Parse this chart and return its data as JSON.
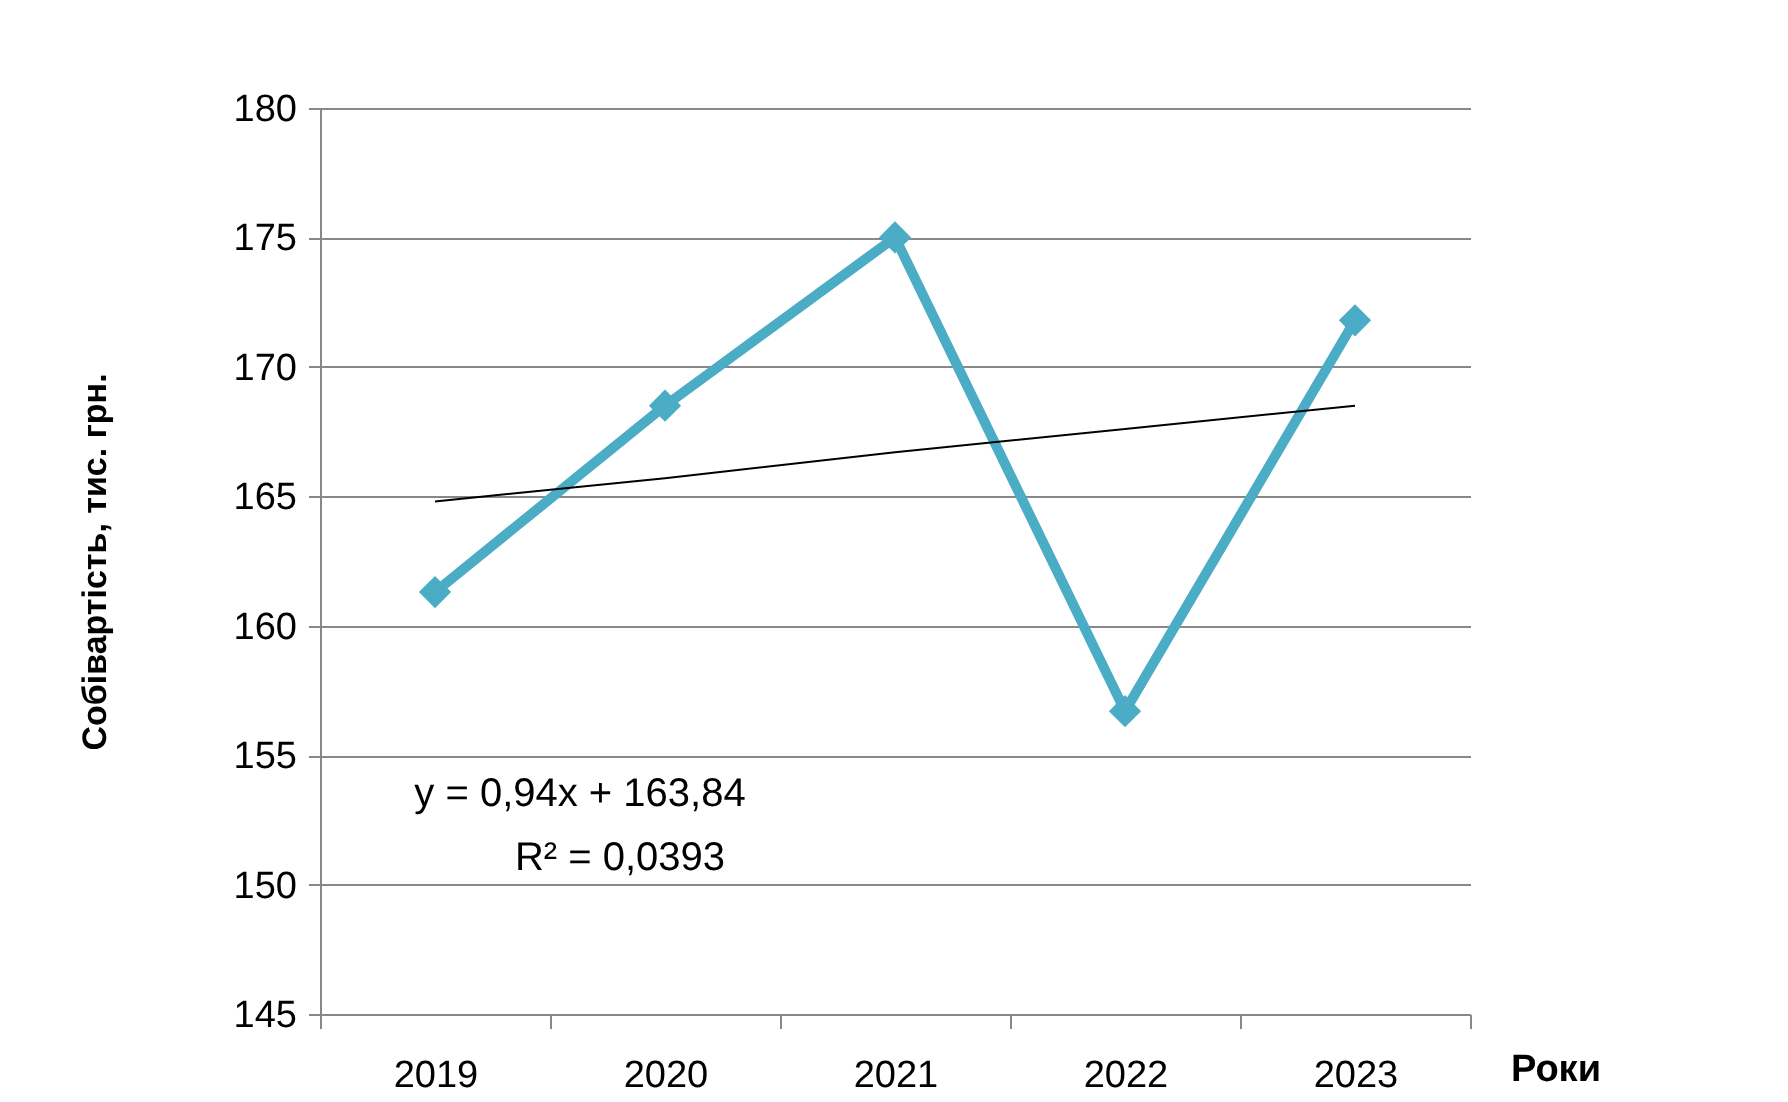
{
  "chart_data": {
    "type": "line",
    "xlabel": "Роки",
    "ylabel": "Собівартість,  тис. грн.",
    "categories": [
      "2019",
      "2020",
      "2021",
      "2022",
      "2023"
    ],
    "series": [
      {
        "color": "#4bacc6",
        "values": [
          161.3,
          168.5,
          175.0,
          156.7,
          171.8
        ]
      },
      {
        "type": "line",
        "color": "#000000",
        "marker": "none",
        "line_style": "solid",
        "values": [
          164.8,
          165.7,
          166.7,
          167.6,
          168.5
        ]
      }
    ],
    "ylim": [
      145,
      180
    ],
    "yticks": [
      145,
      150,
      155,
      160,
      165,
      170,
      175,
      180
    ],
    "grid": "y",
    "marker": "diamond",
    "annotations": [
      "y = 0,94x + 163,84",
      "R² = 0,0393"
    ]
  }
}
